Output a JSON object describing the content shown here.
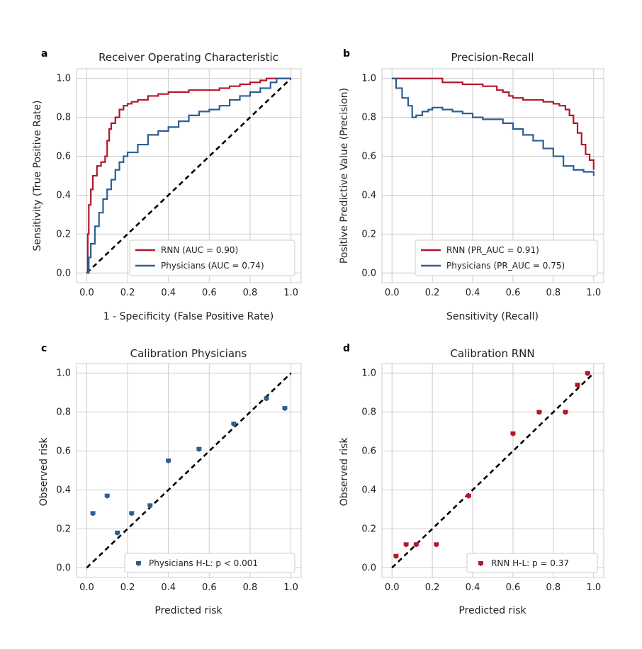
{
  "colors": {
    "rnn": "#b2182b",
    "physicians": "#2c5f93",
    "diagonal": "#000000",
    "grid": "#cccccc"
  },
  "chart_data": [
    {
      "panel": "a",
      "type": "line",
      "title": "Receiver Operating Characteristic",
      "xlabel": "1 - Specificity (False Positive Rate)",
      "ylabel": "Sensitivity (True Positive Rate)",
      "xlim": [
        0,
        1
      ],
      "ylim": [
        0,
        1
      ],
      "xticks": [
        "0.0",
        "0.2",
        "0.4",
        "0.6",
        "0.8",
        "1.0"
      ],
      "yticks": [
        "0.0",
        "0.2",
        "0.4",
        "0.6",
        "0.8",
        "1.0"
      ],
      "grid": true,
      "legend": "bottom-right",
      "diagonal": true,
      "series": [
        {
          "name": "RNN (AUC = 0.90)",
          "color_key": "rnn",
          "step": true,
          "x": [
            0,
            0.005,
            0.01,
            0.02,
            0.03,
            0.05,
            0.07,
            0.09,
            0.1,
            0.11,
            0.12,
            0.14,
            0.16,
            0.18,
            0.2,
            0.22,
            0.25,
            0.3,
            0.35,
            0.4,
            0.45,
            0.5,
            0.55,
            0.6,
            0.65,
            0.7,
            0.75,
            0.8,
            0.85,
            0.88,
            0.9,
            1.0
          ],
          "y": [
            0,
            0.2,
            0.35,
            0.43,
            0.5,
            0.55,
            0.57,
            0.6,
            0.68,
            0.74,
            0.77,
            0.8,
            0.84,
            0.86,
            0.87,
            0.88,
            0.89,
            0.91,
            0.92,
            0.93,
            0.93,
            0.94,
            0.94,
            0.94,
            0.95,
            0.96,
            0.97,
            0.98,
            0.99,
            1.0,
            1.0,
            1.0
          ]
        },
        {
          "name": "Physicians (AUC = 0.74)",
          "color_key": "physicians",
          "step": true,
          "x": [
            0,
            0.01,
            0.02,
            0.04,
            0.06,
            0.08,
            0.1,
            0.12,
            0.14,
            0.16,
            0.18,
            0.2,
            0.25,
            0.3,
            0.35,
            0.4,
            0.45,
            0.5,
            0.55,
            0.6,
            0.65,
            0.7,
            0.75,
            0.8,
            0.85,
            0.9,
            0.93,
            0.95,
            1.0
          ],
          "y": [
            0,
            0.08,
            0.15,
            0.24,
            0.31,
            0.38,
            0.43,
            0.48,
            0.53,
            0.57,
            0.6,
            0.62,
            0.66,
            0.71,
            0.73,
            0.75,
            0.78,
            0.81,
            0.83,
            0.84,
            0.86,
            0.89,
            0.91,
            0.93,
            0.95,
            0.98,
            1.0,
            1.0,
            1.0
          ]
        }
      ]
    },
    {
      "panel": "b",
      "type": "line",
      "title": "Precision-Recall",
      "xlabel": "Sensitivity (Recall)",
      "ylabel": "Positive Predictive Value (Precision)",
      "xlim": [
        0,
        1
      ],
      "ylim": [
        0,
        1
      ],
      "xticks": [
        "0.0",
        "0.2",
        "0.4",
        "0.6",
        "0.8",
        "1.0"
      ],
      "yticks": [
        "0.0",
        "0.2",
        "0.4",
        "0.6",
        "0.8",
        "1.0"
      ],
      "grid": true,
      "legend": "bottom-right",
      "diagonal": false,
      "series": [
        {
          "name": "RNN (PR_AUC = 0.91)",
          "color_key": "rnn",
          "step": true,
          "x": [
            0,
            0.1,
            0.2,
            0.25,
            0.3,
            0.35,
            0.4,
            0.45,
            0.5,
            0.52,
            0.55,
            0.58,
            0.6,
            0.65,
            0.7,
            0.75,
            0.8,
            0.83,
            0.86,
            0.88,
            0.9,
            0.92,
            0.94,
            0.96,
            0.98,
            1.0
          ],
          "y": [
            1.0,
            1.0,
            1.0,
            0.98,
            0.98,
            0.97,
            0.97,
            0.96,
            0.96,
            0.94,
            0.93,
            0.91,
            0.9,
            0.89,
            0.89,
            0.88,
            0.87,
            0.86,
            0.84,
            0.81,
            0.77,
            0.72,
            0.66,
            0.61,
            0.58,
            0.53
          ]
        },
        {
          "name": "Physicians (PR_AUC = 0.75)",
          "color_key": "physicians",
          "step": true,
          "x": [
            0,
            0.02,
            0.05,
            0.08,
            0.1,
            0.12,
            0.15,
            0.18,
            0.2,
            0.25,
            0.3,
            0.35,
            0.4,
            0.45,
            0.5,
            0.55,
            0.6,
            0.65,
            0.7,
            0.75,
            0.8,
            0.85,
            0.9,
            0.95,
            1.0
          ],
          "y": [
            1.0,
            0.95,
            0.9,
            0.86,
            0.8,
            0.81,
            0.83,
            0.84,
            0.85,
            0.84,
            0.83,
            0.82,
            0.8,
            0.79,
            0.79,
            0.77,
            0.74,
            0.71,
            0.68,
            0.64,
            0.6,
            0.55,
            0.53,
            0.52,
            0.5
          ]
        }
      ]
    },
    {
      "panel": "c",
      "type": "scatter",
      "title": "Calibration Physicians",
      "xlabel": "Predicted risk",
      "ylabel": "Observed risk",
      "xlim": [
        0,
        1
      ],
      "ylim": [
        0,
        1
      ],
      "xticks": [
        "0.0",
        "0.2",
        "0.4",
        "0.6",
        "0.8",
        "1.0"
      ],
      "yticks": [
        "0.0",
        "0.2",
        "0.4",
        "0.6",
        "0.8",
        "1.0"
      ],
      "grid": true,
      "legend": "bottom-right",
      "diagonal": true,
      "series": [
        {
          "name": "Physicians H-L: p < 0.001",
          "color_key": "physicians",
          "x": [
            0.03,
            0.1,
            0.15,
            0.22,
            0.31,
            0.4,
            0.55,
            0.72,
            0.88,
            0.97
          ],
          "y": [
            0.28,
            0.37,
            0.18,
            0.28,
            0.32,
            0.55,
            0.61,
            0.74,
            0.87,
            0.82
          ]
        }
      ]
    },
    {
      "panel": "d",
      "type": "scatter",
      "title": "Calibration RNN",
      "xlabel": "Predicted risk",
      "ylabel": "Observed risk",
      "xlim": [
        0,
        1
      ],
      "ylim": [
        0,
        1
      ],
      "xticks": [
        "0.0",
        "0.2",
        "0.4",
        "0.6",
        "0.8",
        "1.0"
      ],
      "yticks": [
        "0.0",
        "0.2",
        "0.4",
        "0.6",
        "0.8",
        "1.0"
      ],
      "grid": true,
      "legend": "bottom-right",
      "diagonal": true,
      "series": [
        {
          "name": "RNN H-L: p = 0.37",
          "color_key": "rnn",
          "x": [
            0.02,
            0.07,
            0.12,
            0.22,
            0.38,
            0.6,
            0.73,
            0.86,
            0.92,
            0.97
          ],
          "y": [
            0.06,
            0.12,
            0.12,
            0.12,
            0.37,
            0.69,
            0.8,
            0.8,
            0.94,
            1.0
          ]
        }
      ]
    }
  ]
}
